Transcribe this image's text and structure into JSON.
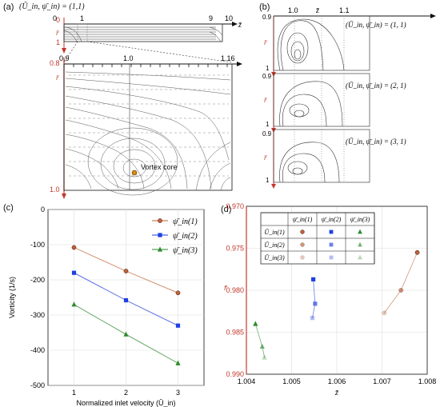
{
  "figure": {
    "panel_a": {
      "label": "(a)",
      "header": "(Ū_in, ψ̄_in) = (1,1)",
      "top_x_ticks": [
        "0",
        "1",
        "9",
        "10"
      ],
      "top_y_ticks": [
        "0",
        "1"
      ],
      "x_axis": "z̄",
      "y_axis": "r̄",
      "zoom_x_ticks": [
        "0.9",
        "1.0",
        "1.16"
      ],
      "zoom_y_ticks": [
        "0.8",
        "1.0"
      ],
      "annotation": "Vortex core"
    },
    "panel_b": {
      "label": "(b)",
      "x_ticks": [
        "1.0",
        "z̄",
        "1.1"
      ],
      "y_ticks_top": [
        "0.9",
        "0.9",
        "0.9"
      ],
      "y_ticks_bottom": [
        "1",
        "1",
        "1"
      ],
      "y_axis": "r̄",
      "cases": [
        "(Ū_in, ψ̄_in) = (1, 1)",
        "(Ū_in, ψ̄_in) = (2, 1)",
        "(Ū_in, ψ̄_in) = (3, 1)"
      ]
    },
    "panel_c": {
      "label": "(c)"
    },
    "panel_d": {
      "label": "(d)",
      "table": {
        "col_headers": [
          "ψ̄_in(1)",
          "ψ̄_in(2)",
          "ψ̄_in(3)"
        ],
        "row_headers": [
          "Ū_in(1)",
          "Ū_in(2)",
          "Ū_in(3)"
        ]
      }
    }
  },
  "colors": {
    "red_axis": "#c0392b",
    "series_1": "#c0613a",
    "series_2": "#1f3fe0",
    "series_3": "#2e8b2e"
  },
  "chart_data": [
    {
      "id": "panel_c",
      "type": "line",
      "xlabel": "Normalized inlet velocity (Ū_in)",
      "ylabel": "Vorticity (1/s)",
      "x": [
        1,
        2,
        3
      ],
      "xlim": [
        0.5,
        3.5
      ],
      "ylim": [
        -500,
        0
      ],
      "x_ticks": [
        "1",
        "2",
        "3"
      ],
      "y_ticks": [
        "0",
        "-100",
        "-200",
        "-300",
        "-400",
        "-500"
      ],
      "grid": true,
      "legend_position": "top-right",
      "series": [
        {
          "name": "ψ̄_in(1)",
          "values": [
            -108,
            -175,
            -237
          ],
          "color": "#c0613a",
          "marker": "circle"
        },
        {
          "name": "ψ̄_in(2)",
          "values": [
            -180,
            -258,
            -330
          ],
          "color": "#1f3fe0",
          "marker": "square"
        },
        {
          "name": "ψ̄_in(3)",
          "values": [
            -270,
            -355,
            -437
          ],
          "color": "#2e8b2e",
          "marker": "triangle"
        }
      ]
    },
    {
      "id": "panel_d",
      "type": "scatter",
      "xlabel": "z̄",
      "ylabel": "r̄",
      "xlim": [
        1.004,
        1.008
      ],
      "ylim": [
        0.97,
        0.99
      ],
      "y_inverted": true,
      "x_ticks": [
        "1.004",
        "1.005",
        "1.006",
        "1.007",
        "1.008"
      ],
      "y_ticks": [
        "0.970",
        "0.975",
        "0.980",
        "0.985",
        "0.990"
      ],
      "grid": true,
      "series": [
        {
          "name": "ψ̄_in(1)",
          "color": "#c0613a",
          "marker": "circle",
          "points": [
            [
              1.00778,
              0.9755
            ],
            [
              1.00742,
              0.98
            ],
            [
              1.00705,
              0.9827
            ]
          ]
        },
        {
          "name": "ψ̄_in(2)",
          "color": "#1f3fe0",
          "marker": "square",
          "points": [
            [
              1.00548,
              0.9787
            ],
            [
              1.00552,
              0.9816
            ],
            [
              1.00546,
              0.9833
            ]
          ]
        },
        {
          "name": "ψ̄_in(3)",
          "color": "#2e8b2e",
          "marker": "triangle",
          "points": [
            [
              1.0042,
              0.984
            ],
            [
              1.00435,
              0.9867
            ],
            [
              1.0044,
              0.988
            ]
          ]
        }
      ]
    }
  ]
}
